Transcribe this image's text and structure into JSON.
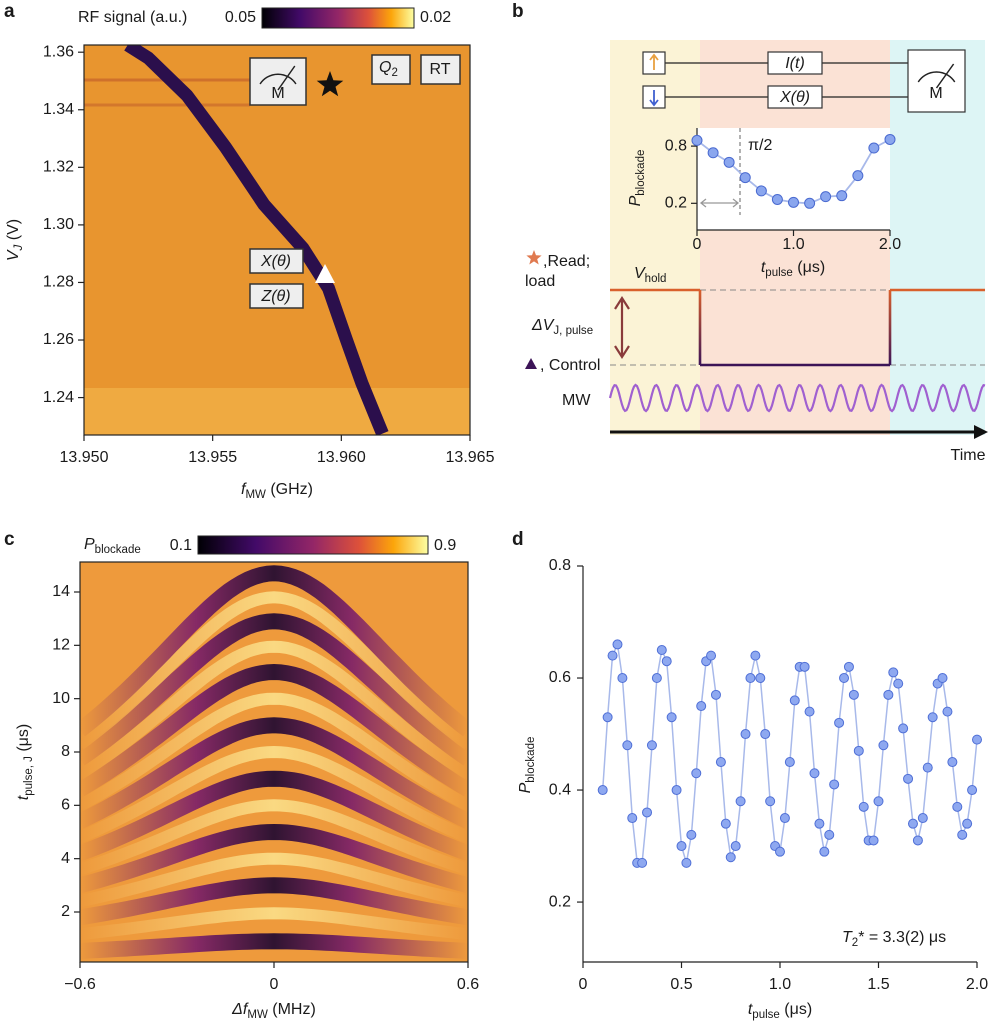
{
  "chart_data": [
    {
      "type": "heatmap",
      "panel": "a",
      "colorbar": {
        "label": "RF signal (a.u.)",
        "range": [
          0.05,
          0.02
        ]
      },
      "xlabel": [
        "f",
        "MW",
        " (GHz)"
      ],
      "ylabel": [
        "V",
        "J",
        " (V)"
      ],
      "xlim": [
        13.95,
        13.965
      ],
      "xticks": [
        {
          "value": 13.95,
          "label": "13.950"
        },
        {
          "value": 13.955,
          "label": "13.955"
        },
        {
          "value": 13.96,
          "label": "13.960"
        },
        {
          "value": 13.965,
          "label": "13.965"
        }
      ],
      "ylim": [
        1.227,
        1.3625
      ],
      "yticks": [
        1.24,
        1.26,
        1.28,
        {
          "value": 1.3,
          "label": "1.30"
        },
        1.32,
        1.34,
        1.36
      ],
      "resonance": {
        "x": [
          13.9517,
          13.9525,
          13.954,
          13.9555,
          13.957,
          13.9585,
          13.9595,
          13.9602,
          13.9608,
          13.9616
        ],
        "y": [
          1.3625,
          1.358,
          1.345,
          1.327,
          1.307,
          1.292,
          1.278,
          1.26,
          1.245,
          1.2275
        ],
        "color": "#2b0f4c"
      },
      "labels": {
        "meter": "M",
        "qubit": [
          "Q",
          "2"
        ],
        "rt": "RT",
        "x_gate": "X(θ)",
        "z_gate": "Z(θ)"
      }
    },
    {
      "type": "line",
      "panel": "b",
      "xlabel": [
        "t",
        "pulse",
        " (μs)"
      ],
      "ylabel": [
        "P",
        "blockade"
      ],
      "annotation": "π/2",
      "xlim": [
        0,
        2
      ],
      "xticks": [
        0,
        {
          "value": 1,
          "label": "1.0"
        },
        {
          "value": 2,
          "label": "2.0"
        }
      ],
      "ylim": [
        -0.08,
        0.99
      ],
      "yticks": [
        0.2,
        0.8
      ],
      "x": [
        0,
        0.167,
        0.333,
        0.5,
        0.667,
        0.833,
        1,
        1.167,
        1.333,
        1.5,
        1.667,
        1.833,
        2
      ],
      "values": [
        0.86,
        0.73,
        0.63,
        0.47,
        0.33,
        0.24,
        0.21,
        0.2,
        0.27,
        0.28,
        0.49,
        0.78,
        0.87
      ],
      "color": "#8aa6ee"
    },
    {
      "type": "heatmap",
      "panel": "c",
      "colorbar": {
        "label": [
          "P",
          "blockade"
        ],
        "range": [
          0.1,
          0.9
        ]
      },
      "xlabel": [
        "Δf",
        "MW",
        " (MHz)"
      ],
      "ylabel": [
        "t",
        "pulse, J",
        " (μs)"
      ],
      "xlim": [
        -0.6,
        0.6
      ],
      "xticks": [
        {
          "value": -0.6,
          "label": "−0.6"
        },
        0,
        0.6
      ],
      "ylim": [
        0.125,
        15.125
      ],
      "yticks": [
        2,
        4,
        6,
        8,
        10,
        12,
        14
      ],
      "dark_fringes": [
        0.9,
        3,
        5,
        7,
        9,
        11,
        12.9,
        14.7
      ]
    },
    {
      "type": "scatter",
      "panel": "d",
      "xlabel": [
        "t",
        "pulse",
        " (μs)"
      ],
      "ylabel": [
        "P",
        "blockade"
      ],
      "annotation": [
        "T",
        "2",
        "* = 3.3(2) μs"
      ],
      "xlim": [
        0,
        2
      ],
      "xticks": [
        0,
        0.5,
        {
          "value": 1,
          "label": "1.0"
        },
        1.5,
        {
          "value": 2,
          "label": "2.0"
        }
      ],
      "ylim": [
        0.093,
        0.8
      ],
      "yticks": [
        0.2,
        0.4,
        0.6,
        0.8
      ],
      "x": [
        0.1,
        0.125,
        0.15,
        0.175,
        0.2,
        0.225,
        0.25,
        0.275,
        0.3,
        0.325,
        0.35,
        0.375,
        0.4,
        0.425,
        0.45,
        0.475,
        0.5,
        0.525,
        0.55,
        0.575,
        0.6,
        0.625,
        0.65,
        0.675,
        0.7,
        0.725,
        0.75,
        0.775,
        0.8,
        0.825,
        0.85,
        0.875,
        0.9,
        0.925,
        0.95,
        0.975,
        1.0,
        1.025,
        1.05,
        1.075,
        1.1,
        1.125,
        1.15,
        1.175,
        1.2,
        1.225,
        1.25,
        1.275,
        1.3,
        1.325,
        1.35,
        1.375,
        1.4,
        1.425,
        1.45,
        1.475,
        1.5,
        1.525,
        1.55,
        1.575,
        1.6,
        1.625,
        1.65,
        1.675,
        1.7,
        1.725,
        1.75,
        1.775,
        1.8,
        1.825,
        1.85,
        1.875,
        1.9,
        1.925,
        1.95,
        1.975,
        2.0
      ],
      "values": [
        0.4,
        0.53,
        0.64,
        0.66,
        0.6,
        0.48,
        0.35,
        0.27,
        0.27,
        0.36,
        0.48,
        0.6,
        0.65,
        0.63,
        0.53,
        0.4,
        0.3,
        0.27,
        0.32,
        0.43,
        0.55,
        0.63,
        0.64,
        0.57,
        0.45,
        0.34,
        0.28,
        0.3,
        0.38,
        0.5,
        0.6,
        0.64,
        0.6,
        0.5,
        0.38,
        0.3,
        0.29,
        0.35,
        0.45,
        0.56,
        0.62,
        0.62,
        0.54,
        0.43,
        0.34,
        0.29,
        0.32,
        0.41,
        0.52,
        0.6,
        0.62,
        0.57,
        0.47,
        0.37,
        0.31,
        0.31,
        0.38,
        0.48,
        0.57,
        0.61,
        0.59,
        0.51,
        0.42,
        0.34,
        0.31,
        0.35,
        0.44,
        0.53,
        0.59,
        0.6,
        0.54,
        0.45,
        0.37,
        0.32,
        0.34,
        0.4,
        0.49
      ],
      "color": "#8ea8f0"
    }
  ],
  "diagram_b": {
    "gates": [
      "I(t)",
      "X(θ)"
    ],
    "meter": "M",
    "hold_label": [
      "V",
      "hold"
    ],
    "pulse_label": [
      "ΔV",
      "J, pulse"
    ],
    "read_label": ",Read;",
    "load_label": "load",
    "control_label": ", Control",
    "mw": "MW",
    "time": "Time"
  }
}
